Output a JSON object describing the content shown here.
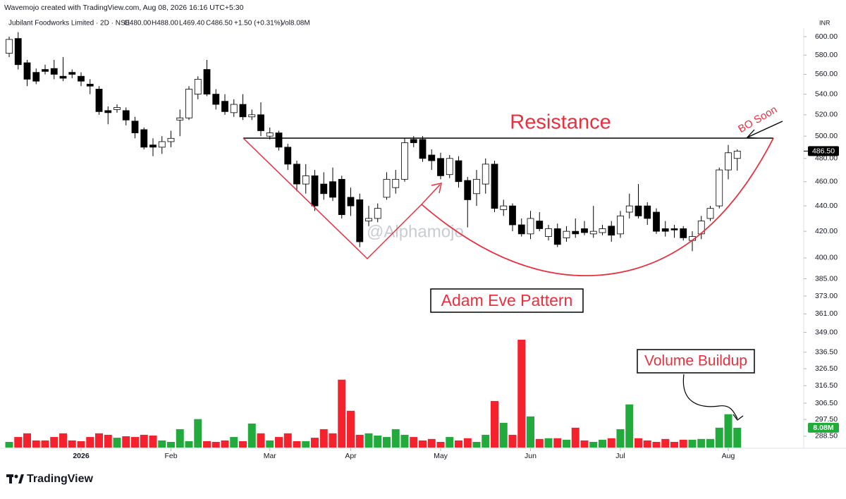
{
  "header": {
    "credit": "Wavemojo created with TradingView.com, Aug 08, 2026 16:16 UTC+5:30",
    "symbol": "Jubilant Foodworks Limited · 2D · NSE",
    "ohlc": [
      "O480.00",
      "H488.00",
      "L469.40",
      "C486.50"
    ],
    "change": "+1.50 (+0.31%)",
    "volume": "Vol8.08M"
  },
  "chart_data": {
    "type": "candlestick",
    "currency": "INR",
    "log_scale": true,
    "ylim": [
      282.2,
      609.4
    ],
    "yticks": [
      {
        "value": 600,
        "label": "600.00"
      },
      {
        "value": 580,
        "label": "580.00"
      },
      {
        "value": 560,
        "label": "560.00"
      },
      {
        "value": 540,
        "label": "540.00"
      },
      {
        "value": 520,
        "label": "520.00"
      },
      {
        "value": 500,
        "label": "500.00"
      },
      {
        "value": 480,
        "label": "480.00"
      },
      {
        "value": 460,
        "label": "460.00"
      },
      {
        "value": 440,
        "label": "440.00"
      },
      {
        "value": 420,
        "label": "420.00"
      },
      {
        "value": 400,
        "label": "400.00"
      },
      {
        "value": 385,
        "label": "385.00"
      },
      {
        "value": 373,
        "label": "373.00"
      },
      {
        "value": 361,
        "label": "361.00"
      },
      {
        "value": 349,
        "label": "349.00"
      },
      {
        "value": 336.5,
        "label": "336.50"
      },
      {
        "value": 326.5,
        "label": "326.50"
      },
      {
        "value": 316.5,
        "label": "316.50"
      },
      {
        "value": 306.5,
        "label": "306.50"
      },
      {
        "value": 297.5,
        "label": "297.50"
      },
      {
        "value": 288.5,
        "label": "288.50"
      }
    ],
    "xticks": [
      {
        "value": 8,
        "label": "2026"
      },
      {
        "value": 18,
        "label": "Feb"
      },
      {
        "value": 29,
        "label": "Mar"
      },
      {
        "value": 38,
        "label": "Apr"
      },
      {
        "value": 48,
        "label": "May"
      },
      {
        "value": 58,
        "label": "Jun"
      },
      {
        "value": 68,
        "label": "Jul"
      },
      {
        "value": 80,
        "label": "Aug"
      }
    ],
    "open": [
      582,
      598,
      572,
      562,
      565,
      566,
      558,
      562,
      558,
      550,
      545,
      524,
      525,
      524,
      514,
      506,
      492,
      490,
      495,
      515,
      517,
      540,
      565,
      540,
      533,
      522,
      530,
      518,
      520,
      500,
      503,
      490,
      475,
      458,
      465,
      458,
      460,
      462,
      447,
      445,
      428,
      430,
      447,
      455,
      462,
      497,
      497,
      483,
      480,
      466,
      478,
      461,
      450,
      458,
      475,
      437,
      440,
      425,
      418,
      428,
      416,
      422,
      415,
      420,
      422,
      418,
      419,
      424,
      418,
      435,
      440,
      440,
      435,
      422,
      422,
      422,
      413,
      418,
      430,
      440,
      470,
      480
    ],
    "high": [
      600,
      605,
      575,
      566,
      570,
      575,
      578,
      565,
      562,
      555,
      548,
      528,
      530,
      527,
      518,
      508,
      498,
      500,
      505,
      525,
      548,
      558,
      575,
      545,
      540,
      535,
      540,
      525,
      532,
      508,
      505,
      493,
      478,
      475,
      470,
      468,
      472,
      465,
      455,
      450,
      440,
      442,
      468,
      470,
      498,
      500,
      500,
      488,
      485,
      483,
      482,
      464,
      470,
      480,
      478,
      445,
      442,
      430,
      436,
      435,
      425,
      426,
      424,
      430,
      428,
      440,
      425,
      428,
      436,
      450,
      458,
      443,
      438,
      428,
      425,
      424,
      420,
      432,
      440,
      472,
      492,
      488
    ],
    "low": [
      578,
      565,
      548,
      550,
      560,
      555,
      553,
      556,
      548,
      540,
      520,
      511,
      522,
      510,
      498,
      488,
      482,
      484,
      490,
      500,
      515,
      535,
      538,
      525,
      520,
      518,
      515,
      515,
      500,
      497,
      487,
      470,
      452,
      450,
      436,
      445,
      444,
      430,
      432,
      408,
      424,
      427,
      445,
      450,
      460,
      490,
      477,
      470,
      462,
      463,
      455,
      423,
      440,
      450,
      435,
      432,
      420,
      416,
      414,
      420,
      413,
      408,
      412,
      415,
      417,
      415,
      417,
      412,
      415,
      430,
      430,
      425,
      418,
      416,
      415,
      413,
      405,
      414,
      428,
      438,
      462,
      469.4
    ],
    "close": [
      597,
      570,
      555,
      553,
      563,
      560,
      556,
      560,
      553,
      548,
      523,
      522,
      527,
      515,
      503,
      490,
      490,
      495,
      498,
      517,
      545,
      555,
      540,
      530,
      523,
      530,
      518,
      520,
      505,
      503,
      490,
      475,
      458,
      465,
      440,
      450,
      447,
      433,
      440,
      412,
      430,
      438,
      462,
      462,
      494,
      494,
      480,
      478,
      465,
      480,
      460,
      445,
      462,
      475,
      438,
      440,
      425,
      418,
      430,
      422,
      422,
      410,
      420,
      418,
      419,
      420,
      422,
      417,
      432,
      440,
      432,
      430,
      420,
      420,
      421,
      415,
      416,
      428,
      438,
      470,
      485,
      486.5
    ],
    "volume": [
      2300000,
      4300000,
      5800000,
      2900000,
      2900000,
      4300000,
      5800000,
      2900000,
      2600000,
      4300000,
      5800000,
      5200000,
      4000000,
      4600000,
      4300000,
      5200000,
      4900000,
      2900000,
      2300000,
      7500000,
      2600000,
      11600000,
      2600000,
      2300000,
      2900000,
      4300000,
      2600000,
      9800000,
      5800000,
      2900000,
      4300000,
      5800000,
      2600000,
      2600000,
      4000000,
      7500000,
      5800000,
      27700000,
      15000000,
      5200000,
      5800000,
      4900000,
      4300000,
      7500000,
      5200000,
      4300000,
      2900000,
      3500000,
      2300000,
      4300000,
      2900000,
      3800000,
      2300000,
      5200000,
      19000000,
      10100000,
      5200000,
      44000000,
      12700000,
      3500000,
      3800000,
      3800000,
      3200000,
      8100000,
      2900000,
      2300000,
      3200000,
      3800000,
      7500000,
      17600000,
      3800000,
      2900000,
      2300000,
      3500000,
      2300000,
      3200000,
      3200000,
      3500000,
      3500000,
      8100000,
      13600000,
      8080000
    ],
    "up_color": "#ffffff",
    "down_color": "#000000",
    "candle_border": "#000000",
    "volume_up_color": "#22ab3c",
    "volume_down_color": "#f5222d",
    "last_price": {
      "value": 486.5,
      "label": "486.50"
    },
    "last_volume": {
      "value": 8080000,
      "label": "8.08M"
    },
    "annotations": {
      "resistance": "Resistance",
      "bo": "BO Soon",
      "pattern": "Adam Eve Pattern",
      "volume": "Volume Buildup",
      "watermark": "@Alphamojo"
    }
  },
  "footer": {
    "brand": "TradingView"
  }
}
